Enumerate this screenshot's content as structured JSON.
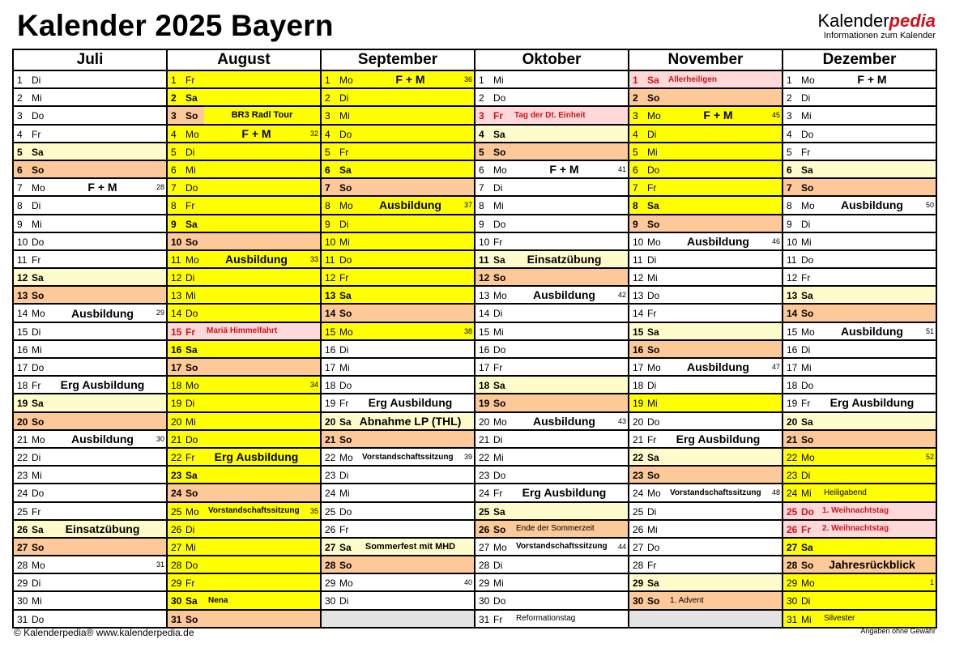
{
  "title": "Kalender 2025 Bayern",
  "logo": {
    "part1": "Kalender",
    "part2": "pedia",
    "tagline": "Informationen zum Kalender"
  },
  "footer": {
    "copyright": "© Kalenderpedia®   www.kalenderpedia.de",
    "disclaimer": "Angaben ohne Gewähr"
  },
  "colors": {
    "ferien": "#ffff00",
    "samstag": "#fffccc",
    "sonntag": "#fdc999",
    "feiertag": "#fdd9da",
    "holiday_text": "#d0121b",
    "empty": "#e3e3e3"
  },
  "months": [
    {
      "name": "Juli",
      "days": [
        {
          "d": "1",
          "w": "Di"
        },
        {
          "d": "2",
          "w": "Mi"
        },
        {
          "d": "3",
          "w": "Do"
        },
        {
          "d": "4",
          "w": "Fr"
        },
        {
          "d": "5",
          "w": "Sa"
        },
        {
          "d": "6",
          "w": "So"
        },
        {
          "d": "7",
          "w": "Mo",
          "kw": "28",
          "ev": "F + M",
          "kind": "big"
        },
        {
          "d": "8",
          "w": "Di"
        },
        {
          "d": "9",
          "w": "Mi"
        },
        {
          "d": "10",
          "w": "Do"
        },
        {
          "d": "11",
          "w": "Fr"
        },
        {
          "d": "12",
          "w": "Sa"
        },
        {
          "d": "13",
          "w": "So"
        },
        {
          "d": "14",
          "w": "Mo",
          "kw": "29",
          "ev": "Ausbildung",
          "kind": "big"
        },
        {
          "d": "15",
          "w": "Di"
        },
        {
          "d": "16",
          "w": "Mi"
        },
        {
          "d": "17",
          "w": "Do"
        },
        {
          "d": "18",
          "w": "Fr",
          "ev": "Erg Ausbildung",
          "kind": "big"
        },
        {
          "d": "19",
          "w": "Sa"
        },
        {
          "d": "20",
          "w": "So"
        },
        {
          "d": "21",
          "w": "Mo",
          "kw": "30",
          "ev": "Ausbildung",
          "kind": "big"
        },
        {
          "d": "22",
          "w": "Di"
        },
        {
          "d": "23",
          "w": "Mi"
        },
        {
          "d": "24",
          "w": "Do"
        },
        {
          "d": "25",
          "w": "Fr"
        },
        {
          "d": "26",
          "w": "Sa",
          "ev": "Einsatzübung",
          "kind": "big"
        },
        {
          "d": "27",
          "w": "So"
        },
        {
          "d": "28",
          "w": "Mo",
          "kw": "31"
        },
        {
          "d": "29",
          "w": "Di"
        },
        {
          "d": "30",
          "w": "Mi"
        },
        {
          "d": "31",
          "w": "Do"
        }
      ]
    },
    {
      "name": "August",
      "days": [
        {
          "d": "1",
          "w": "Fr",
          "ferien": true
        },
        {
          "d": "2",
          "w": "Sa",
          "ferien": true
        },
        {
          "d": "3",
          "w": "So",
          "ferien": true,
          "ev": "BR3 Radl Tour",
          "kind": "mid",
          "highlight": true
        },
        {
          "d": "4",
          "w": "Mo",
          "ferien": true,
          "kw": "32",
          "ev": "F + M",
          "kind": "big"
        },
        {
          "d": "5",
          "w": "Di",
          "ferien": true
        },
        {
          "d": "6",
          "w": "Mi",
          "ferien": true
        },
        {
          "d": "7",
          "w": "Do",
          "ferien": true
        },
        {
          "d": "8",
          "w": "Fr",
          "ferien": true
        },
        {
          "d": "9",
          "w": "Sa",
          "ferien": true
        },
        {
          "d": "10",
          "w": "So",
          "ferien": true
        },
        {
          "d": "11",
          "w": "Mo",
          "ferien": true,
          "kw": "33",
          "ev": "Ausbildung",
          "kind": "big"
        },
        {
          "d": "12",
          "w": "Di",
          "ferien": true
        },
        {
          "d": "13",
          "w": "Mi",
          "ferien": true
        },
        {
          "d": "14",
          "w": "Do",
          "ferien": true
        },
        {
          "d": "15",
          "w": "Fr",
          "feiertag": true,
          "ev": "Mariä Himmelfahrt",
          "kind": "holiday"
        },
        {
          "d": "16",
          "w": "Sa",
          "ferien": true
        },
        {
          "d": "17",
          "w": "So",
          "ferien": true
        },
        {
          "d": "18",
          "w": "Mo",
          "ferien": true,
          "kw": "34"
        },
        {
          "d": "19",
          "w": "Di",
          "ferien": true
        },
        {
          "d": "20",
          "w": "Mi",
          "ferien": true
        },
        {
          "d": "21",
          "w": "Do",
          "ferien": true
        },
        {
          "d": "22",
          "w": "Fr",
          "ferien": true,
          "ev": "Erg Ausbildung",
          "kind": "big"
        },
        {
          "d": "23",
          "w": "Sa",
          "ferien": true
        },
        {
          "d": "24",
          "w": "So",
          "ferien": true
        },
        {
          "d": "25",
          "w": "Mo",
          "ferien": true,
          "kw": "35",
          "ev": "Vorstandschaftssitzung",
          "kind": "small"
        },
        {
          "d": "26",
          "w": "Di",
          "ferien": true
        },
        {
          "d": "27",
          "w": "Mi",
          "ferien": true
        },
        {
          "d": "28",
          "w": "Do",
          "ferien": true
        },
        {
          "d": "29",
          "w": "Fr",
          "ferien": true
        },
        {
          "d": "30",
          "w": "Sa",
          "ferien": true,
          "ev": "Nena",
          "kind": "small"
        },
        {
          "d": "31",
          "w": "So",
          "ferien": true
        }
      ]
    },
    {
      "name": "September",
      "days": [
        {
          "d": "1",
          "w": "Mo",
          "ferien": true,
          "kw": "36",
          "ev": "F + M",
          "kind": "big"
        },
        {
          "d": "2",
          "w": "Di",
          "ferien": true
        },
        {
          "d": "3",
          "w": "Mi",
          "ferien": true
        },
        {
          "d": "4",
          "w": "Do",
          "ferien": true
        },
        {
          "d": "5",
          "w": "Fr",
          "ferien": true
        },
        {
          "d": "6",
          "w": "Sa",
          "ferien": true
        },
        {
          "d": "7",
          "w": "So",
          "ferien": true
        },
        {
          "d": "8",
          "w": "Mo",
          "ferien": true,
          "kw": "37",
          "ev": "Ausbildung",
          "kind": "big"
        },
        {
          "d": "9",
          "w": "Di",
          "ferien": true
        },
        {
          "d": "10",
          "w": "Mi",
          "ferien": true
        },
        {
          "d": "11",
          "w": "Do",
          "ferien": true
        },
        {
          "d": "12",
          "w": "Fr",
          "ferien": true
        },
        {
          "d": "13",
          "w": "Sa",
          "ferien": true
        },
        {
          "d": "14",
          "w": "So",
          "ferien": true
        },
        {
          "d": "15",
          "w": "Mo",
          "ferien": true,
          "kw": "38"
        },
        {
          "d": "16",
          "w": "Di"
        },
        {
          "d": "17",
          "w": "Mi"
        },
        {
          "d": "18",
          "w": "Do"
        },
        {
          "d": "19",
          "w": "Fr",
          "ev": "Erg Ausbildung",
          "kind": "big"
        },
        {
          "d": "20",
          "w": "Sa",
          "ev": "Abnahme LP (THL)",
          "kind": "big"
        },
        {
          "d": "21",
          "w": "So"
        },
        {
          "d": "22",
          "w": "Mo",
          "kw": "39",
          "ev": "Vorstandschaftssitzung",
          "kind": "small"
        },
        {
          "d": "23",
          "w": "Di"
        },
        {
          "d": "24",
          "w": "Mi"
        },
        {
          "d": "25",
          "w": "Do"
        },
        {
          "d": "26",
          "w": "Fr"
        },
        {
          "d": "27",
          "w": "Sa",
          "ev": "Sommerfest mit MHD",
          "kind": "mid"
        },
        {
          "d": "28",
          "w": "So"
        },
        {
          "d": "29",
          "w": "Mo",
          "kw": "40"
        },
        {
          "d": "30",
          "w": "Di"
        }
      ]
    },
    {
      "name": "Oktober",
      "days": [
        {
          "d": "1",
          "w": "Mi"
        },
        {
          "d": "2",
          "w": "Do"
        },
        {
          "d": "3",
          "w": "Fr",
          "feiertag": true,
          "ev": "Tag der Dt. Einheit",
          "kind": "holiday"
        },
        {
          "d": "4",
          "w": "Sa"
        },
        {
          "d": "5",
          "w": "So"
        },
        {
          "d": "6",
          "w": "Mo",
          "kw": "41",
          "ev": "F + M",
          "kind": "big"
        },
        {
          "d": "7",
          "w": "Di"
        },
        {
          "d": "8",
          "w": "Mi"
        },
        {
          "d": "9",
          "w": "Do"
        },
        {
          "d": "10",
          "w": "Fr"
        },
        {
          "d": "11",
          "w": "Sa",
          "ev": "Einsatzübung",
          "kind": "big"
        },
        {
          "d": "12",
          "w": "So"
        },
        {
          "d": "13",
          "w": "Mo",
          "kw": "42",
          "ev": "Ausbildung",
          "kind": "big"
        },
        {
          "d": "14",
          "w": "Di"
        },
        {
          "d": "15",
          "w": "Mi"
        },
        {
          "d": "16",
          "w": "Do"
        },
        {
          "d": "17",
          "w": "Fr"
        },
        {
          "d": "18",
          "w": "Sa"
        },
        {
          "d": "19",
          "w": "So"
        },
        {
          "d": "20",
          "w": "Mo",
          "kw": "43",
          "ev": "Ausbildung",
          "kind": "big"
        },
        {
          "d": "21",
          "w": "Di"
        },
        {
          "d": "22",
          "w": "Mi"
        },
        {
          "d": "23",
          "w": "Do"
        },
        {
          "d": "24",
          "w": "Fr",
          "ev": "Erg Ausbildung",
          "kind": "big"
        },
        {
          "d": "25",
          "w": "Sa"
        },
        {
          "d": "26",
          "w": "So",
          "ev": "Ende der Sommerzeit",
          "kind": "note"
        },
        {
          "d": "27",
          "w": "Mo",
          "kw": "44",
          "ev": "Vorstandschaftssitzung",
          "kind": "small"
        },
        {
          "d": "28",
          "w": "Di"
        },
        {
          "d": "29",
          "w": "Mi"
        },
        {
          "d": "30",
          "w": "Do"
        },
        {
          "d": "31",
          "w": "Fr",
          "ev": "Reformationstag",
          "kind": "note"
        }
      ]
    },
    {
      "name": "November",
      "days": [
        {
          "d": "1",
          "w": "Sa",
          "feiertag": true,
          "ev": "Allerheiligen",
          "kind": "holiday"
        },
        {
          "d": "2",
          "w": "So"
        },
        {
          "d": "3",
          "w": "Mo",
          "ferien": true,
          "kw": "45",
          "ev": "F + M",
          "kind": "big"
        },
        {
          "d": "4",
          "w": "Di",
          "ferien": true
        },
        {
          "d": "5",
          "w": "Mi",
          "ferien": true
        },
        {
          "d": "6",
          "w": "Do",
          "ferien": true
        },
        {
          "d": "7",
          "w": "Fr",
          "ferien": true
        },
        {
          "d": "8",
          "w": "Sa",
          "ferien": true
        },
        {
          "d": "9",
          "w": "So"
        },
        {
          "d": "10",
          "w": "Mo",
          "kw": "46",
          "ev": "Ausbildung",
          "kind": "big"
        },
        {
          "d": "11",
          "w": "Di"
        },
        {
          "d": "12",
          "w": "Mi"
        },
        {
          "d": "13",
          "w": "Do"
        },
        {
          "d": "14",
          "w": "Fr"
        },
        {
          "d": "15",
          "w": "Sa"
        },
        {
          "d": "16",
          "w": "So"
        },
        {
          "d": "17",
          "w": "Mo",
          "kw": "47",
          "ev": "Ausbildung",
          "kind": "big"
        },
        {
          "d": "18",
          "w": "Di"
        },
        {
          "d": "19",
          "w": "Mi",
          "ferien": true
        },
        {
          "d": "20",
          "w": "Do"
        },
        {
          "d": "21",
          "w": "Fr",
          "ev": "Erg Ausbildung",
          "kind": "big"
        },
        {
          "d": "22",
          "w": "Sa"
        },
        {
          "d": "23",
          "w": "So"
        },
        {
          "d": "24",
          "w": "Mo",
          "kw": "48",
          "ev": "Vorstandschaftssitzung",
          "kind": "small"
        },
        {
          "d": "25",
          "w": "Di"
        },
        {
          "d": "26",
          "w": "Mi"
        },
        {
          "d": "27",
          "w": "Do"
        },
        {
          "d": "28",
          "w": "Fr"
        },
        {
          "d": "29",
          "w": "Sa"
        },
        {
          "d": "30",
          "w": "So",
          "ev": "1. Advent",
          "kind": "note"
        }
      ]
    },
    {
      "name": "Dezember",
      "days": [
        {
          "d": "1",
          "w": "Mo",
          "ev": "F + M",
          "kind": "big"
        },
        {
          "d": "2",
          "w": "Di"
        },
        {
          "d": "3",
          "w": "Mi"
        },
        {
          "d": "4",
          "w": "Do"
        },
        {
          "d": "5",
          "w": "Fr"
        },
        {
          "d": "6",
          "w": "Sa"
        },
        {
          "d": "7",
          "w": "So"
        },
        {
          "d": "8",
          "w": "Mo",
          "kw": "50",
          "ev": "Ausbildung",
          "kind": "big"
        },
        {
          "d": "9",
          "w": "Di"
        },
        {
          "d": "10",
          "w": "Mi"
        },
        {
          "d": "11",
          "w": "Do"
        },
        {
          "d": "12",
          "w": "Fr"
        },
        {
          "d": "13",
          "w": "Sa"
        },
        {
          "d": "14",
          "w": "So"
        },
        {
          "d": "15",
          "w": "Mo",
          "kw": "51",
          "ev": "Ausbildung",
          "kind": "big"
        },
        {
          "d": "16",
          "w": "Di"
        },
        {
          "d": "17",
          "w": "Mi"
        },
        {
          "d": "18",
          "w": "Do"
        },
        {
          "d": "19",
          "w": "Fr",
          "ev": "Erg Ausbildung",
          "kind": "big"
        },
        {
          "d": "20",
          "w": "Sa"
        },
        {
          "d": "21",
          "w": "So"
        },
        {
          "d": "22",
          "w": "Mo",
          "ferien": true,
          "kw": "52"
        },
        {
          "d": "23",
          "w": "Di",
          "ferien": true
        },
        {
          "d": "24",
          "w": "Mi",
          "ferien": true,
          "ev": "Heiligabend",
          "kind": "note"
        },
        {
          "d": "25",
          "w": "Do",
          "feiertag": true,
          "ev": "1. Weihnachtstag",
          "kind": "holiday"
        },
        {
          "d": "26",
          "w": "Fr",
          "feiertag": true,
          "ev": "2. Weihnachtstag",
          "kind": "holiday"
        },
        {
          "d": "27",
          "w": "Sa",
          "ferien": true
        },
        {
          "d": "28",
          "w": "So",
          "ferien": true,
          "ev": "Jahresrückblick",
          "kind": "big"
        },
        {
          "d": "29",
          "w": "Mo",
          "ferien": true,
          "kw": "1"
        },
        {
          "d": "30",
          "w": "Di",
          "ferien": true
        },
        {
          "d": "31",
          "w": "Mi",
          "ferien": true,
          "ev": "Silvester",
          "kind": "note"
        }
      ]
    }
  ]
}
